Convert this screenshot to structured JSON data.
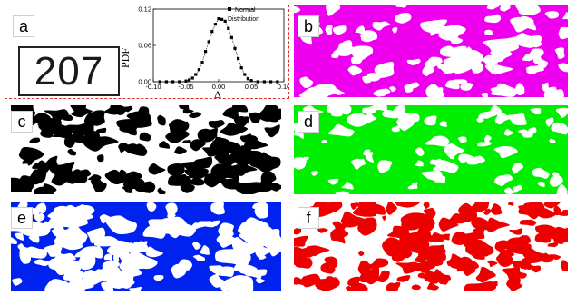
{
  "panels": {
    "a": {
      "label": "a",
      "digits": "207"
    },
    "b": {
      "label": "b",
      "fg": "#ee00ee"
    },
    "c": {
      "label": "c",
      "fg": "#000000"
    },
    "d": {
      "label": "d",
      "fg": "#00ee00"
    },
    "e": {
      "label": "e",
      "fg": "#0022ee"
    },
    "f": {
      "label": "f",
      "fg": "#ee0000"
    }
  },
  "chart_data": {
    "type": "scatter",
    "xlabel": "Δ",
    "ylabel": "PDF",
    "xlim": [
      -0.1,
      0.1
    ],
    "ylim": [
      0.0,
      0.12
    ],
    "xticks": [
      "-0.10",
      "-0.05",
      "0.00",
      "0.05",
      "0.10"
    ],
    "yticks": [
      "0.00",
      "0.06",
      "0.12"
    ],
    "legend": {
      "label": "Normal Distribution",
      "placement": "top-right"
    },
    "series": [
      {
        "name": "Normal Distribution",
        "x": [
          -0.09,
          -0.08,
          -0.07,
          -0.06,
          -0.05,
          -0.045,
          -0.04,
          -0.035,
          -0.03,
          -0.025,
          -0.02,
          -0.015,
          -0.01,
          -0.005,
          0.0,
          0.005,
          0.01,
          0.015,
          0.02,
          0.025,
          0.03,
          0.035,
          0.04,
          0.045,
          0.05,
          0.06,
          0.07,
          0.08,
          0.09
        ],
        "y": [
          0.0,
          0.0,
          0.0,
          0.0,
          0.001,
          0.003,
          0.006,
          0.012,
          0.02,
          0.032,
          0.05,
          0.066,
          0.083,
          0.095,
          0.104,
          0.103,
          0.1,
          0.088,
          0.073,
          0.055,
          0.038,
          0.023,
          0.012,
          0.005,
          0.002,
          0.0,
          0.0,
          0.0,
          0.0
        ]
      }
    ]
  }
}
